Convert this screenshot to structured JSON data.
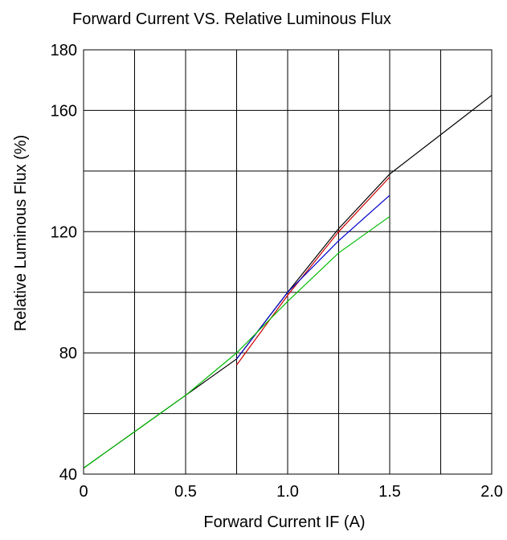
{
  "chart_data": {
    "type": "line",
    "title": "Forward Current VS.  Relative Luminous Flux",
    "xlabel": "Forward  Current  IF  (A)",
    "ylabel": "Relative  Luminous  Flux  (%)",
    "xlim": [
      0,
      2.0
    ],
    "ylim": [
      40,
      180
    ],
    "x_ticks": [
      0.0,
      0.25,
      0.5,
      0.75,
      1.0,
      1.25,
      1.5,
      1.75,
      2.0
    ],
    "y_ticks": [
      40,
      60,
      80,
      100,
      120,
      140,
      160,
      180
    ],
    "x_tick_labels": [
      "0",
      "",
      "0.5",
      "",
      "1.0",
      "",
      "1.5",
      "",
      "2.0"
    ],
    "y_tick_labels": [
      "40",
      "",
      "80",
      "",
      "120",
      "",
      "160",
      "180"
    ],
    "grid": true,
    "series": [
      {
        "color": "#000000",
        "x": [
          0.0,
          0.25,
          0.5,
          0.75,
          1.0,
          1.25,
          1.5,
          1.75,
          2.0
        ],
        "y": [
          42,
          54,
          66,
          78,
          100,
          121,
          139,
          152,
          165
        ]
      },
      {
        "color": "#cc0000",
        "x": [
          0.75,
          1.0,
          1.25,
          1.5
        ],
        "y": [
          76,
          99,
          120,
          138
        ]
      },
      {
        "color": "#0000cc",
        "x": [
          0.75,
          1.0,
          1.25,
          1.5
        ],
        "y": [
          78,
          100,
          117,
          132
        ]
      },
      {
        "color": "#00bb00",
        "x": [
          0.0,
          0.25,
          0.5,
          0.75,
          1.0,
          1.25,
          1.5
        ],
        "y": [
          42,
          54,
          66,
          80,
          97,
          113,
          125
        ]
      }
    ]
  }
}
